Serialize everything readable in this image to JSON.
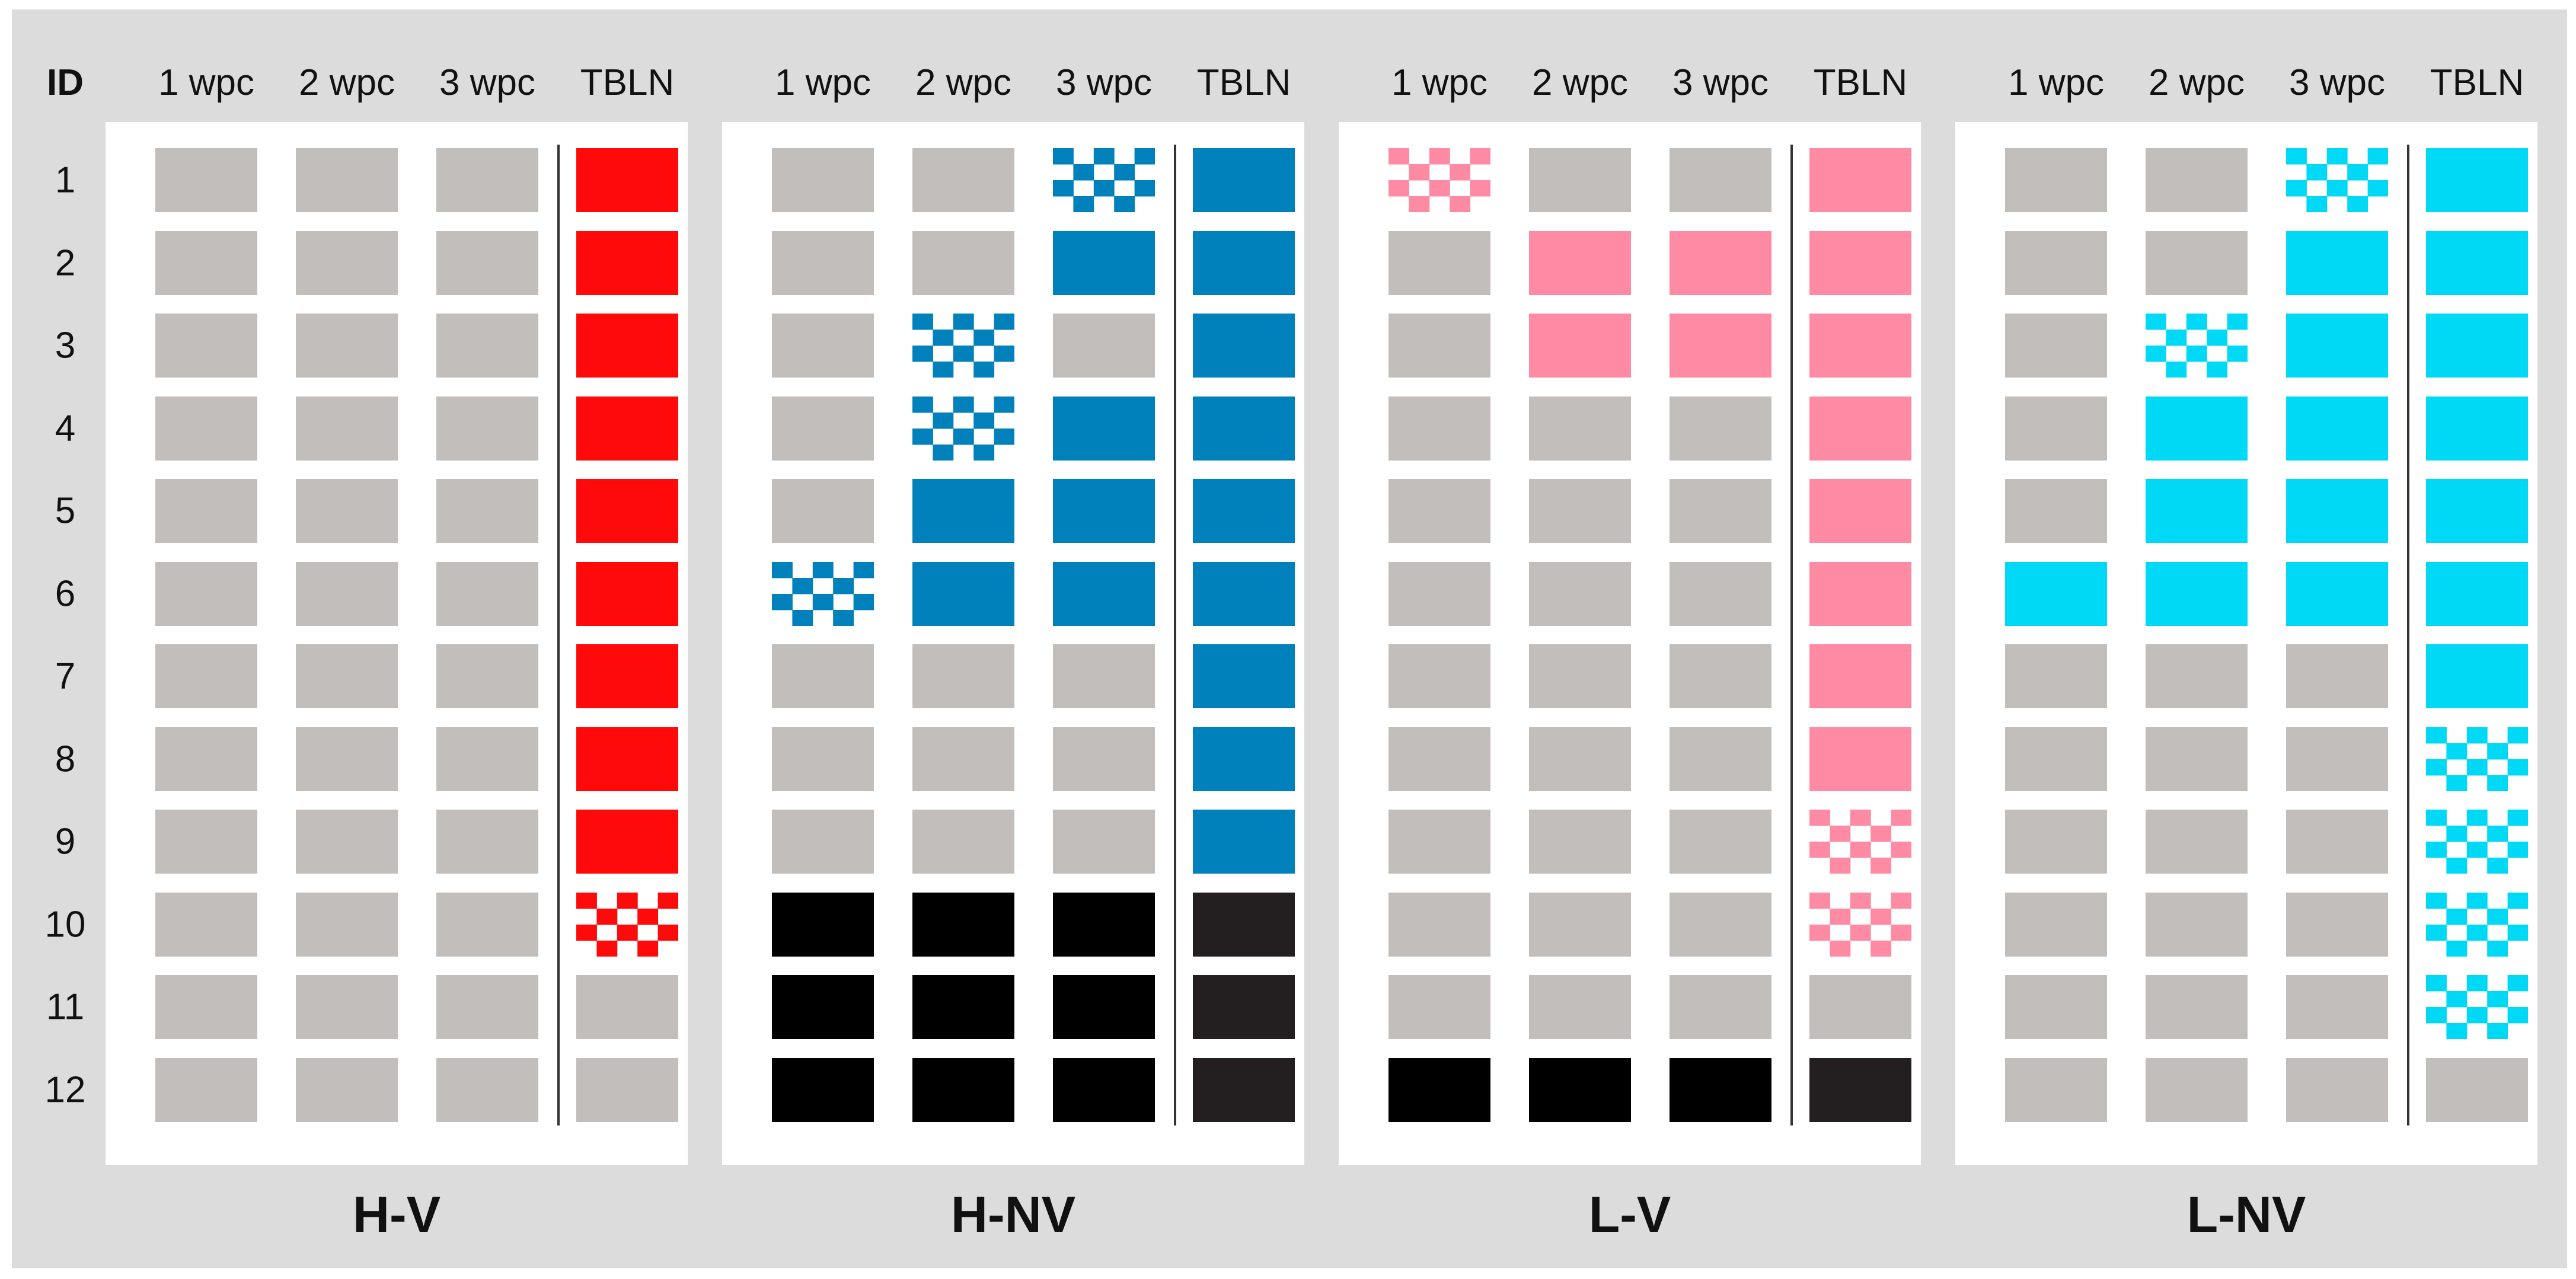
{
  "id_header": "ID",
  "row_ids": [
    "1",
    "2",
    "3",
    "4",
    "5",
    "6",
    "7",
    "8",
    "9",
    "10",
    "11",
    "12"
  ],
  "column_headers": [
    "1 wpc",
    "2 wpc",
    "3 wpc",
    "TBLN"
  ],
  "legend_encoding": {
    "cell_states": [
      "grey",
      "solid",
      "checker",
      "black",
      "dark"
    ],
    "grey_color": "#c1bebb",
    "black_color": "#000000",
    "dark_color": "#231f20"
  },
  "panels": [
    {
      "title": "H-V",
      "color": "#ff0a0a",
      "rows": [
        [
          "grey",
          "grey",
          "grey",
          "solid"
        ],
        [
          "grey",
          "grey",
          "grey",
          "solid"
        ],
        [
          "grey",
          "grey",
          "grey",
          "solid"
        ],
        [
          "grey",
          "grey",
          "grey",
          "solid"
        ],
        [
          "grey",
          "grey",
          "grey",
          "solid"
        ],
        [
          "grey",
          "grey",
          "grey",
          "solid"
        ],
        [
          "grey",
          "grey",
          "grey",
          "solid"
        ],
        [
          "grey",
          "grey",
          "grey",
          "solid"
        ],
        [
          "grey",
          "grey",
          "grey",
          "solid"
        ],
        [
          "grey",
          "grey",
          "grey",
          "checker"
        ],
        [
          "grey",
          "grey",
          "grey",
          "grey"
        ],
        [
          "grey",
          "grey",
          "grey",
          "grey"
        ]
      ]
    },
    {
      "title": "H-NV",
      "color": "#0081bb",
      "rows": [
        [
          "grey",
          "grey",
          "checker",
          "solid"
        ],
        [
          "grey",
          "grey",
          "solid",
          "solid"
        ],
        [
          "grey",
          "checker",
          "grey",
          "solid"
        ],
        [
          "grey",
          "checker",
          "solid",
          "solid"
        ],
        [
          "grey",
          "solid",
          "solid",
          "solid"
        ],
        [
          "checker",
          "solid",
          "solid",
          "solid"
        ],
        [
          "grey",
          "grey",
          "grey",
          "solid"
        ],
        [
          "grey",
          "grey",
          "grey",
          "solid"
        ],
        [
          "grey",
          "grey",
          "grey",
          "solid"
        ],
        [
          "black",
          "black",
          "black",
          "dark"
        ],
        [
          "black",
          "black",
          "black",
          "dark"
        ],
        [
          "black",
          "black",
          "black",
          "dark"
        ]
      ]
    },
    {
      "title": "L-V",
      "color": "#ff8aa3",
      "rows": [
        [
          "checker",
          "grey",
          "grey",
          "solid"
        ],
        [
          "grey",
          "solid",
          "solid",
          "solid"
        ],
        [
          "grey",
          "solid",
          "solid",
          "solid"
        ],
        [
          "grey",
          "grey",
          "grey",
          "solid"
        ],
        [
          "grey",
          "grey",
          "grey",
          "solid"
        ],
        [
          "grey",
          "grey",
          "grey",
          "solid"
        ],
        [
          "grey",
          "grey",
          "grey",
          "solid"
        ],
        [
          "grey",
          "grey",
          "grey",
          "solid"
        ],
        [
          "grey",
          "grey",
          "grey",
          "checker"
        ],
        [
          "grey",
          "grey",
          "grey",
          "checker"
        ],
        [
          "grey",
          "grey",
          "grey",
          "grey"
        ],
        [
          "black",
          "black",
          "black",
          "dark"
        ]
      ]
    },
    {
      "title": "L-NV",
      "color": "#00d9f5",
      "rows": [
        [
          "grey",
          "grey",
          "checker",
          "solid"
        ],
        [
          "grey",
          "grey",
          "solid",
          "solid"
        ],
        [
          "grey",
          "checker",
          "solid",
          "solid"
        ],
        [
          "grey",
          "solid",
          "solid",
          "solid"
        ],
        [
          "grey",
          "solid",
          "solid",
          "solid"
        ],
        [
          "solid",
          "solid",
          "solid",
          "solid"
        ],
        [
          "grey",
          "grey",
          "grey",
          "solid"
        ],
        [
          "grey",
          "grey",
          "grey",
          "checker"
        ],
        [
          "grey",
          "grey",
          "grey",
          "checker"
        ],
        [
          "grey",
          "grey",
          "grey",
          "checker"
        ],
        [
          "grey",
          "grey",
          "grey",
          "checker"
        ],
        [
          "grey",
          "grey",
          "grey",
          "grey"
        ]
      ]
    }
  ]
}
